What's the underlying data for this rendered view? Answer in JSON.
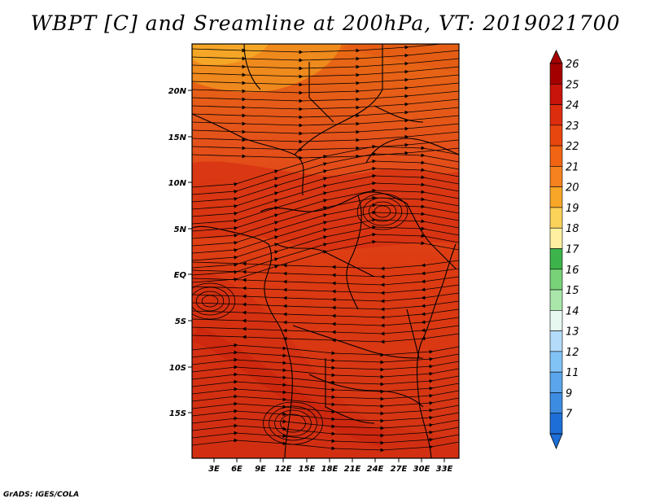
{
  "title": "WBPT [C] and Sreamline at 200hPa, VT: 2019021700",
  "credit": "GrADS: IGES/COLA",
  "map": {
    "lat_labels": [
      "20N",
      "15N",
      "10N",
      "5N",
      "EQ",
      "5S",
      "10S",
      "15S"
    ],
    "lon_labels": [
      "3E",
      "6E",
      "9E",
      "12E",
      "15E",
      "18E",
      "21E",
      "24E",
      "27E",
      "30E",
      "33E"
    ],
    "field": "WBPT [C]",
    "overlay": "Streamline at 200hPa"
  },
  "colorbar": {
    "labels": [
      "26",
      "25",
      "24",
      "23",
      "22",
      "21",
      "20",
      "19",
      "18",
      "17",
      "16",
      "15",
      "14",
      "13",
      "12",
      "11",
      "9",
      "7"
    ],
    "colors": [
      "#a50000",
      "#c8140a",
      "#dc2d0f",
      "#e8460f",
      "#f06414",
      "#f5821e",
      "#f8a628",
      "#fbd25a",
      "#fef0a0",
      "#3cb44b",
      "#78d278",
      "#aae6aa",
      "#e6f8f0",
      "#b4dcfa",
      "#82c3f5",
      "#5aa5eb",
      "#3c8ce1",
      "#1e6ed7"
    ],
    "top_arrow_color": "#a50000",
    "bottom_arrow_color": "#1e6ed7"
  }
}
